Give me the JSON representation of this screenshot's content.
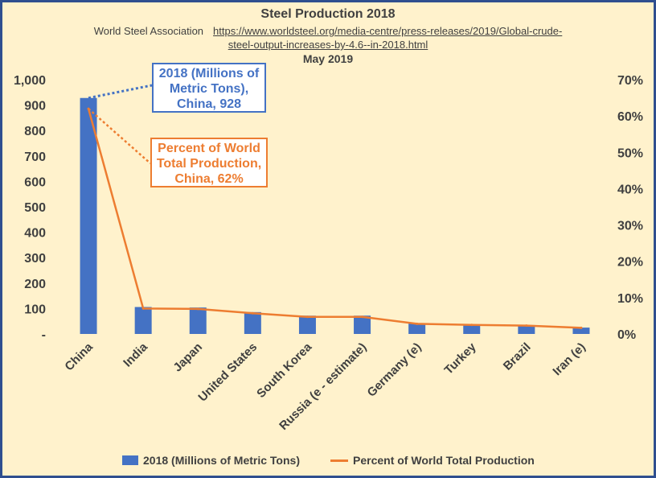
{
  "chart_data": {
    "type": "bar+line",
    "title": "Steel Production 2018",
    "subtitle_source": "World Steel Association",
    "subtitle_url_part1": "https://www.worldsteel.org/media-centre/press-releases/2019/Global-crude-",
    "subtitle_url_part2": "steel-output-increases-by-4.6--in-2018.html",
    "subtitle_date": "May 2019",
    "categories": [
      "China",
      "India",
      "Japan",
      "United States",
      "South Korea",
      "Russia (e - estimate)",
      "Germany (e)",
      "Turkey",
      "Brazil",
      "Iran (e)"
    ],
    "series": [
      {
        "name": "2018 (Millions of Metric Tons)",
        "type": "bar",
        "axis": "left",
        "color": "#4472c4",
        "values": [
          928,
          106,
          104,
          86,
          72,
          72,
          42,
          37,
          35,
          25
        ]
      },
      {
        "name": "Percent of World Total Production",
        "type": "line",
        "axis": "right",
        "color": "#ed7d31",
        "values": [
          0.62,
          0.07,
          0.069,
          0.057,
          0.047,
          0.047,
          0.028,
          0.025,
          0.023,
          0.017
        ]
      }
    ],
    "y_left": {
      "min": 0,
      "max": 1000,
      "ticks": [
        0,
        100,
        200,
        300,
        400,
        500,
        600,
        700,
        800,
        900,
        1000
      ],
      "tick_labels": [
        "-",
        "100",
        "200",
        "300",
        "400",
        "500",
        "600",
        "700",
        "800",
        "900",
        "1,000"
      ]
    },
    "y_right": {
      "min": 0,
      "max": 0.7,
      "ticks": [
        0,
        0.1,
        0.2,
        0.3,
        0.4,
        0.5,
        0.6,
        0.7
      ],
      "tick_labels": [
        "0%",
        "10%",
        "20%",
        "30%",
        "40%",
        "50%",
        "60%",
        "70%"
      ]
    },
    "grid": false,
    "legend_position": "bottom",
    "annotations": [
      {
        "text": "2018 (Millions of Metric Tons), China, 928",
        "lines": [
          "2018 (Millions of",
          "Metric Tons),",
          "China, 928"
        ],
        "color": "#4472c4",
        "target_series": 0,
        "target_index": 0
      },
      {
        "text": "Percent of World Total Production, China, 62%",
        "lines": [
          "Percent of World",
          "Total Production,",
          "China, 62%"
        ],
        "color": "#ed7d31",
        "target_series": 1,
        "target_index": 0
      }
    ]
  },
  "colors": {
    "background": "#fff2cc",
    "border": "#2f4f8f",
    "text": "#404040"
  }
}
